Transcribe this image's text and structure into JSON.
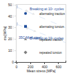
{
  "chart_data": {
    "type": "scatter",
    "x_label": "Mean stress [MPa]",
    "y_label": "σa [MPa]",
    "xlim": [
      0,
      700
    ],
    "ylim": [
      0,
      500
    ],
    "xticks": [
      0,
      200,
      400,
      600
    ],
    "yticks": [
      0,
      100,
      200,
      300,
      400,
      500
    ],
    "grid": false,
    "legend": "lower left",
    "annotations": [
      "Breaking at 10⁵ cycles",
      "Breaking at 10⁷ cycles",
      "35CrMo4 steel"
    ],
    "series": [
      {
        "type": "line",
        "line_style": "dashed",
        "color": "#5b8fd1",
        "x": [
          0,
          700
        ],
        "values": [
          480,
          300
        ]
      },
      {
        "type": "line",
        "line_style": "dashed",
        "color": "#5b8fd1",
        "x": [
          0,
          700
        ],
        "values": [
          330,
          170
        ]
      },
      {
        "name": "alternating traction",
        "type": "scatter",
        "marker": "circle",
        "color": "#1f4e9c",
        "x": [
          0,
          0
        ],
        "values": [
          478,
          328
        ]
      },
      {
        "name": "alternating torsion",
        "type": "scatter",
        "marker": "square",
        "color": "#1f4e9c",
        "x": [
          0,
          0
        ],
        "values": [
          485,
          335
        ]
      },
      {
        "name": "repeated traction",
        "type": "scatter",
        "marker": "triangle-up",
        "color": "#7f7f7f",
        "x": [
          240,
          260
        ],
        "values": [
          420,
          270
        ]
      },
      {
        "name": "repeated torsion",
        "type": "scatter",
        "marker": "diamond",
        "color": "#7f7f7f",
        "x": [
          140,
          150
        ],
        "values": [
          445,
          297
        ]
      }
    ]
  }
}
